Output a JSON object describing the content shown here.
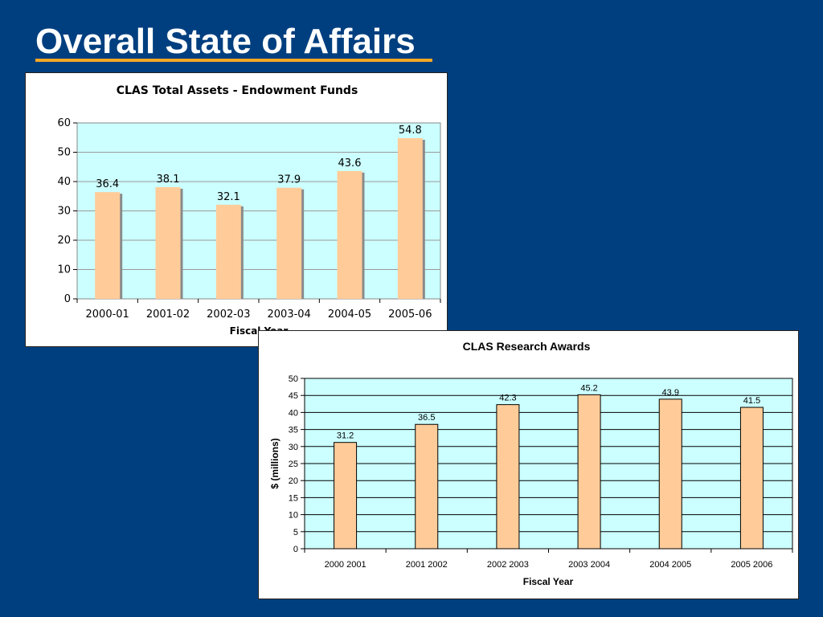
{
  "slide": {
    "title": "Overall State of Affairs"
  },
  "colors": {
    "background": "#003f7f",
    "accent": "#f5a623",
    "plot_fill": "#ccffff",
    "bar_fill": "#ffcc99"
  },
  "chart_data": [
    {
      "type": "bar",
      "title": "CLAS Total Assets - Endowment Funds",
      "xlabel": "Fiscal Year",
      "ylabel": "",
      "categories": [
        "2000-01",
        "2001-02",
        "2002-03",
        "2003-04",
        "2004-05",
        "2005-06"
      ],
      "values": [
        36.4,
        38.1,
        32.1,
        37.9,
        43.6,
        54.8
      ],
      "ylim": [
        0,
        60
      ],
      "yticks": [
        "0",
        "10",
        "20",
        "30",
        "40",
        "50",
        "60"
      ],
      "grid": true
    },
    {
      "type": "bar",
      "title": "CLAS Research Awards",
      "xlabel": "Fiscal Year",
      "ylabel": "$ (millions)",
      "categories": [
        "2000 2001",
        "2001 2002",
        "2002 2003",
        "2003 2004",
        "2004 2005",
        "2005 2006"
      ],
      "values": [
        31.2,
        36.5,
        42.3,
        45.2,
        43.9,
        41.5
      ],
      "ylim": [
        0,
        50
      ],
      "yticks": [
        "0",
        "5",
        "10",
        "15",
        "20",
        "25",
        "30",
        "35",
        "40",
        "45",
        "50"
      ],
      "grid": true
    }
  ]
}
